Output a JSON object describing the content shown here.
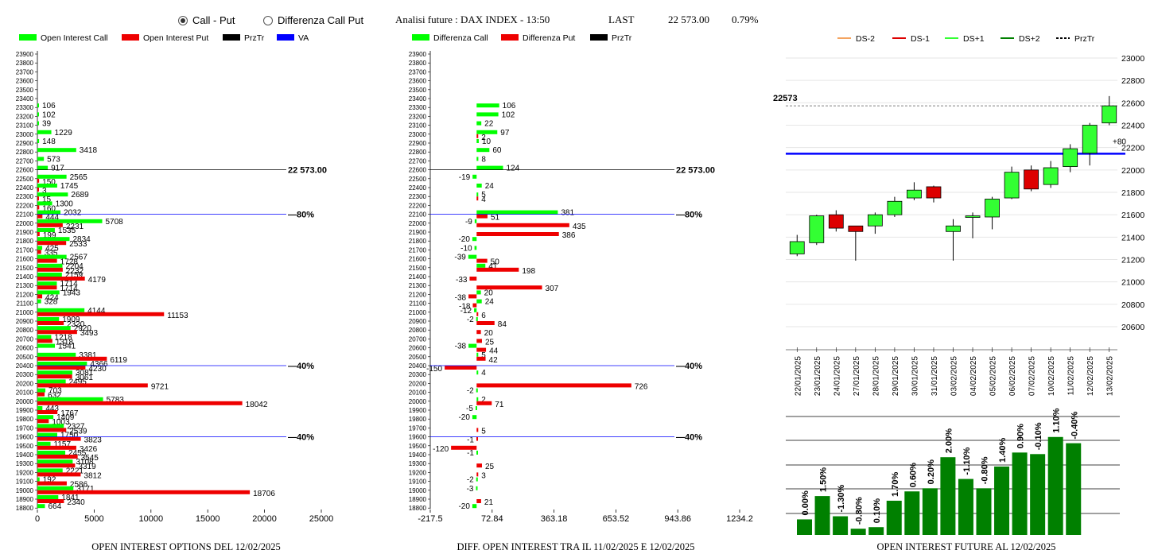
{
  "toolbar": {
    "option_call_put": "Call - Put",
    "option_diff": "Differenza Call Put",
    "selected": "call_put",
    "title": "Analisi future : DAX INDEX - 13:50",
    "last_label": "LAST",
    "last_value": "22 573.00",
    "last_change": "0.79%"
  },
  "colors": {
    "green": "#00ff00",
    "red": "#ee0000",
    "black": "#000000",
    "blue": "#0000ff",
    "dark_green": "#008000",
    "ds_minus2": "#f4a460",
    "ds_minus1": "#dd0000",
    "ds_plus1": "#33ff33",
    "ds_plus2": "#008000"
  },
  "strikes": [
    "23900",
    "23800",
    "23700",
    "23600",
    "23500",
    "23400",
    "23300",
    "23200",
    "23100",
    "23000",
    "22900",
    "22800",
    "22700",
    "22600",
    "22500",
    "22400",
    "22300",
    "22200",
    "22100",
    "22000",
    "21900",
    "21800",
    "21700",
    "21600",
    "21500",
    "21400",
    "21300",
    "21200",
    "21100",
    "21000",
    "20900",
    "20800",
    "20700",
    "20600",
    "20500",
    "20400",
    "20300",
    "20200",
    "20100",
    "20000",
    "19900",
    "19800",
    "19700",
    "19600",
    "19500",
    "19400",
    "19300",
    "19200",
    "19100",
    "19000",
    "18900",
    "18800"
  ],
  "chart_data": [
    {
      "type": "bar",
      "orientation": "horizontal",
      "title": "OPEN INTEREST OPTIONS DEL 12/02/2025",
      "legend": [
        "Open Interest Call",
        "Open Interest Put",
        "PrzTr",
        "VA"
      ],
      "xlim": [
        0,
        25000
      ],
      "xticks": [
        "0",
        "5000",
        "10000",
        "15000",
        "20000",
        "25000"
      ],
      "series": [
        {
          "name": "Open Interest Call",
          "values": [
            0,
            0,
            0,
            0,
            0,
            0,
            106,
            102,
            39,
            1229,
            148,
            3418,
            573,
            917,
            2565,
            1745,
            2689,
            1300,
            2032,
            5708,
            1535,
            2834,
            425,
            2567,
            2204,
            2159,
            1714,
            1943,
            328,
            4144,
            1909,
            2920,
            1218,
            1541,
            3381,
            4366,
            3081,
            2495,
            703,
            5783,
            443,
            1409,
            2327,
            1750,
            1157,
            2455,
            3108,
            2221,
            192,
            3171,
            1841,
            664
          ]
        },
        {
          "name": "Open Interest Put",
          "values": [
            0,
            0,
            0,
            0,
            0,
            0,
            0,
            0,
            0,
            0,
            0,
            0,
            0,
            0,
            150,
            3,
            15,
            160,
            444,
            2231,
            199,
            2533,
            335,
            1728,
            2232,
            4179,
            1714,
            424,
            0,
            11153,
            2320,
            3493,
            1318,
            0,
            6119,
            4230,
            3061,
            9721,
            632,
            18042,
            1767,
            1003,
            2539,
            3823,
            3426,
            3545,
            3319,
            3812,
            2586,
            18706,
            2340,
            0
          ]
        }
      ],
      "annotations": [
        {
          "strike": "22600",
          "label": "22 573.00",
          "color": "black"
        },
        {
          "strike": "22100",
          "label": "80%",
          "color": "blue"
        },
        {
          "strike": "20400",
          "label": "40%",
          "color": "blue"
        },
        {
          "strike": "19600",
          "label": "40%",
          "color": "blue"
        }
      ]
    },
    {
      "type": "bar",
      "orientation": "horizontal",
      "title": "DIFF. OPEN INTEREST TRA IL 11/02/2025 E 12/02/2025",
      "legend": [
        "Differenza Call",
        "Differenza Put",
        "PrzTr"
      ],
      "xlim": [
        -217.5,
        1234.2
      ],
      "xticks": [
        "-217.5",
        "72.84",
        "363.18",
        "653.52",
        "943.86",
        "1234.2"
      ],
      "series": [
        {
          "name": "Differenza Call",
          "values": [
            0,
            0,
            0,
            0,
            0,
            0,
            106,
            102,
            22,
            97,
            10,
            60,
            8,
            124,
            -19,
            24,
            5,
            0,
            381,
            -9,
            0,
            -20,
            -10,
            -39,
            41,
            0,
            0,
            20,
            24,
            -12,
            -2,
            0,
            0,
            -38,
            5,
            0,
            4,
            0,
            -2,
            2,
            -5,
            -20,
            0,
            0,
            0,
            -1,
            0,
            0,
            -2,
            -3,
            0,
            -20
          ]
        },
        {
          "name": "Differenza Put",
          "values": [
            0,
            0,
            0,
            0,
            0,
            0,
            0,
            0,
            0,
            2,
            0,
            0,
            0,
            0,
            0,
            0,
            4,
            0,
            51,
            435,
            386,
            0,
            0,
            50,
            198,
            -33,
            307,
            -38,
            -18,
            6,
            84,
            20,
            25,
            44,
            42,
            -150,
            0,
            726,
            0,
            71,
            0,
            0,
            5,
            -1,
            -120,
            0,
            25,
            3,
            0,
            0,
            21,
            0
          ]
        }
      ],
      "annotations": [
        {
          "strike": "22600",
          "label": "22 573.00",
          "color": "black"
        },
        {
          "strike": "22100",
          "label": "80%",
          "color": "blue"
        },
        {
          "strike": "20400",
          "label": "40%",
          "color": "blue"
        },
        {
          "strike": "19600",
          "label": "40%",
          "color": "blue"
        }
      ]
    },
    {
      "type": "candlestick",
      "legend": [
        "DS-2",
        "DS-1",
        "DS+1",
        "DS+2",
        "PrzTr"
      ],
      "ylim": [
        20600,
        23000
      ],
      "yticks": [
        "23000",
        "22800",
        "22600",
        "22400",
        "22200",
        "22000",
        "21800",
        "21600",
        "21400",
        "21200",
        "21000",
        "20800",
        "20600"
      ],
      "dates": [
        "22/01/2025",
        "23/01/2025",
        "24/01/2025",
        "27/01/2025",
        "28/01/2025",
        "29/01/2025",
        "30/01/2025",
        "31/01/2025",
        "03/02/2025",
        "04/02/2025",
        "05/02/2025",
        "06/02/2025",
        "07/02/2025",
        "10/02/2025",
        "11/02/2025",
        "12/02/2025",
        "13/02/2025"
      ],
      "open": [
        21250,
        21350,
        21600,
        21500,
        21500,
        21600,
        21750,
        21850,
        21450,
        21580,
        21580,
        21750,
        22000,
        21870,
        22030,
        22150,
        22420
      ],
      "close": [
        21360,
        21590,
        21480,
        21450,
        21600,
        21720,
        21820,
        21750,
        21500,
        21590,
        21740,
        21980,
        21830,
        22020,
        22190,
        22400,
        22573
      ],
      "high": [
        21420,
        21600,
        21640,
        21500,
        21620,
        21760,
        21890,
        21860,
        21560,
        21620,
        21760,
        22030,
        22040,
        22080,
        22230,
        22420,
        22660
      ],
      "low": [
        21230,
        21330,
        21450,
        21190,
        21430,
        21580,
        21730,
        21710,
        21190,
        21390,
        21470,
        21740,
        21810,
        21840,
        21980,
        22040,
        22400
      ],
      "last": {
        "value": 22573,
        "label": "22573"
      },
      "reference_line": {
        "value": 22145,
        "label": "+80"
      }
    },
    {
      "type": "bar",
      "title": "OPEN INTEREST FUTURE AL 12/02/2025",
      "categories": [
        "22/01/2025",
        "23/01/2025",
        "24/01/2025",
        "27/01/2025",
        "28/01/2025",
        "29/01/2025",
        "30/01/2025",
        "31/01/2025",
        "03/02/2025",
        "04/02/2025",
        "05/02/2025",
        "06/02/2025",
        "07/02/2025",
        "10/02/2025",
        "11/02/2025",
        "12/02/2025"
      ],
      "values": [
        20.0,
        21.5,
        20.2,
        19.4,
        19.5,
        21.2,
        21.8,
        22.0,
        24.0,
        22.6,
        22.0,
        23.4,
        24.3,
        24.2,
        25.3,
        24.9
      ],
      "labels": [
        "0.00%",
        "1.50%",
        "-1.30%",
        "-0.80%",
        "0.10%",
        "1.70%",
        "0.60%",
        "0.20%",
        "2.00%",
        "-1.10%",
        "-0.80%",
        "1.40%",
        "0.90%",
        "-0.10%",
        "1.10%",
        "-0.40%"
      ]
    }
  ]
}
